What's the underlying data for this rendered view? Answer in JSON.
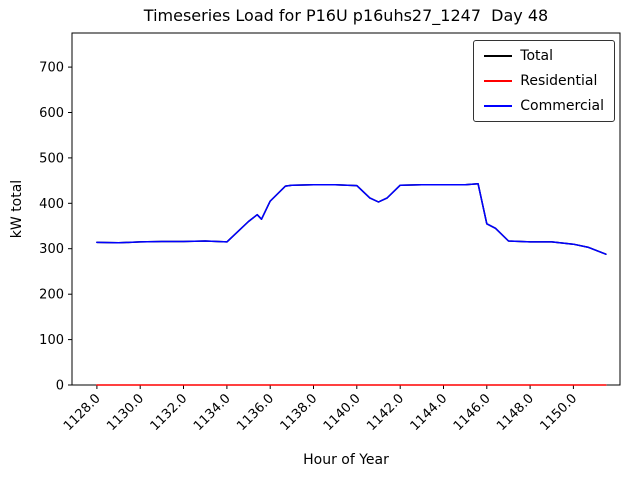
{
  "figure": {
    "title": "Timeseries Load for P16U p16uhs27_1247  Day 48",
    "xlabel": "Hour of Year",
    "ylabel": "kW total"
  },
  "chart_data": {
    "type": "line",
    "title": "Timeseries Load for P16U p16uhs27_1247  Day 48",
    "xlabel": "Hour of Year",
    "ylabel": "kW total",
    "xlim": [
      1126.85,
      1152.15
    ],
    "ylim": [
      0,
      775
    ],
    "grid": false,
    "legend_position": "upper right",
    "xticks": [
      1128,
      1130,
      1132,
      1134,
      1136,
      1138,
      1140,
      1142,
      1144,
      1146,
      1148,
      1150
    ],
    "xtick_labels": [
      "1128.0",
      "1130.0",
      "1132.0",
      "1134.0",
      "1136.0",
      "1138.0",
      "1140.0",
      "1142.0",
      "1144.0",
      "1146.0",
      "1148.0",
      "1150.0"
    ],
    "yticks": [
      0,
      100,
      200,
      300,
      400,
      500,
      600,
      700
    ],
    "ytick_labels": [
      "0",
      "100",
      "200",
      "300",
      "400",
      "500",
      "600",
      "700"
    ],
    "x": [
      1128,
      1129,
      1130,
      1131,
      1132,
      1133,
      1134,
      1135,
      1135.4,
      1135.6,
      1136,
      1136.7,
      1137,
      1138,
      1139,
      1140,
      1140.6,
      1141,
      1141.4,
      1142,
      1143,
      1144,
      1145,
      1145.6,
      1146,
      1146.4,
      1147,
      1148,
      1149,
      1150,
      1150.7,
      1151.5
    ],
    "series": [
      {
        "name": "Total",
        "color": "#000000",
        "values": [
          314,
          313,
          315,
          316,
          316,
          317,
          315,
          360,
          375,
          365,
          405,
          438,
          440,
          441,
          441,
          439,
          412,
          403,
          412,
          440,
          441,
          441,
          441,
          443,
          355,
          345,
          317,
          315,
          315,
          310,
          303,
          288
        ]
      },
      {
        "name": "Residential",
        "color": "#ff0000",
        "values": [
          0,
          0,
          0,
          0,
          0,
          0,
          0,
          0,
          0,
          0,
          0,
          0,
          0,
          0,
          0,
          0,
          0,
          0,
          0,
          0,
          0,
          0,
          0,
          0,
          0,
          0,
          0,
          0,
          0,
          0,
          0,
          0
        ]
      },
      {
        "name": "Commercial",
        "color": "#0000ff",
        "values": [
          314,
          313,
          315,
          316,
          316,
          317,
          315,
          360,
          375,
          365,
          405,
          438,
          440,
          441,
          441,
          439,
          412,
          403,
          412,
          440,
          441,
          441,
          441,
          443,
          355,
          345,
          317,
          315,
          315,
          310,
          303,
          288
        ]
      }
    ]
  }
}
